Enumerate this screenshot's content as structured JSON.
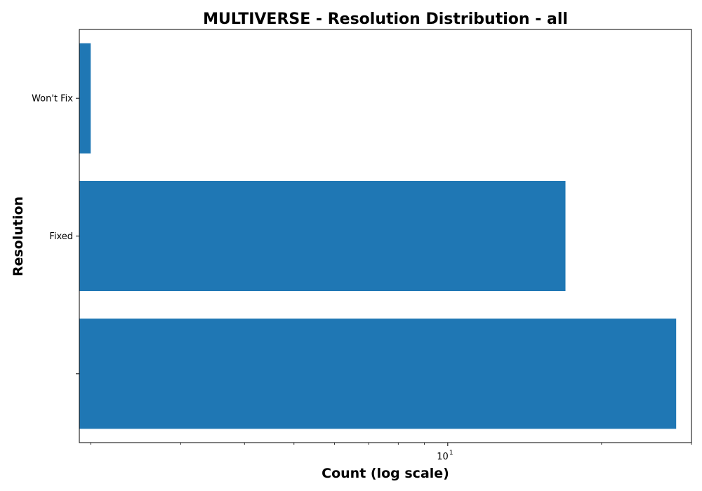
{
  "chart_data": {
    "type": "bar",
    "orientation": "horizontal",
    "title": "MULTIVERSE - Resolution Distribution - all",
    "xlabel": "Count (log scale)",
    "ylabel": "Resolution",
    "x_scale": "log",
    "xlim": [
      1.9,
      30
    ],
    "x_major_ticks": [
      {
        "value": 10,
        "base": "10",
        "exp": "1"
      }
    ],
    "x_minor_ticks": [
      2,
      3,
      4,
      5,
      6,
      7,
      8,
      9,
      20,
      30
    ],
    "categories": [
      "Won't Fix",
      "Fixed",
      ""
    ],
    "values": [
      2,
      17,
      28
    ],
    "bar_color": "#1f77b4",
    "grid": false,
    "legend": false
  }
}
